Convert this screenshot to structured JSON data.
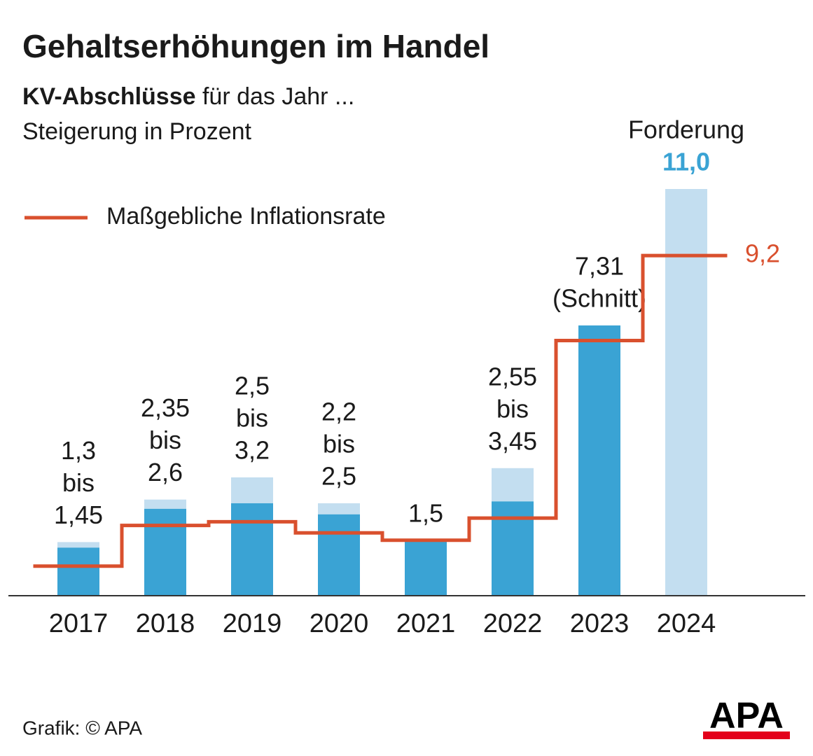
{
  "chart_data": {
    "type": "range-bar",
    "title": "Gehaltserhöhungen im Handel",
    "subtitle_bold": "KV-Abschlüsse",
    "subtitle_rest": " für das Jahr ...",
    "subtitle2": "Steigerung in Prozent",
    "categories": [
      "2017",
      "2018",
      "2019",
      "2020",
      "2021",
      "2022",
      "2023",
      "2024"
    ],
    "range_word": "bis",
    "series": [
      {
        "color": "#3aa3d4",
        "values": [
          1.3,
          2.35,
          2.5,
          2.2,
          1.5,
          2.55,
          7.31,
          null
        ],
        "value_labels": [
          "1,3",
          "2,35",
          "2,5",
          "2,2",
          "1,5",
          "2,55",
          "7,31",
          null
        ]
      },
      {
        "color": "#c3def0",
        "values": [
          1.45,
          2.6,
          3.2,
          2.5,
          null,
          3.45,
          null,
          11.0
        ],
        "value_labels": [
          "1,45",
          "2,6",
          "3,2",
          "2,5",
          null,
          "3,45",
          null,
          "11,0"
        ]
      },
      {
        "name": "Maßgebliche Inflationsrate",
        "color": "#d9502e",
        "values": [
          0.8,
          1.9,
          2.0,
          1.7,
          1.5,
          2.1,
          6.9,
          9.2
        ],
        "value_labels": [
          null,
          null,
          null,
          null,
          null,
          null,
          null,
          "9,2"
        ]
      }
    ],
    "annotations": [
      {
        "text": "(Schnitt)",
        "category": "2023",
        "position": "below"
      },
      {
        "text": "Forderung",
        "category": "2024",
        "position": "above"
      }
    ],
    "ylim": [
      0,
      11.0
    ],
    "legend": "top-left",
    "source": "Grafik: © APA",
    "logo": "APA"
  }
}
